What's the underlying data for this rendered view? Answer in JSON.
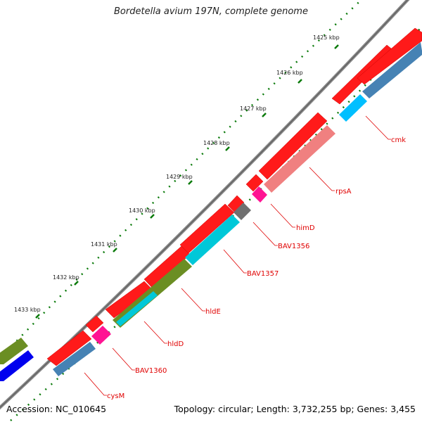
{
  "title": "Bordetella avium 197N, complete genome",
  "footer": {
    "accession": "Accession: NC_010645",
    "summary": "Topology: circular; Length: 3,732,255 bp; Genes: 3,455"
  },
  "kbp_labels": [
    "1425 kbp",
    "1426 kbp",
    "1427 kbp",
    "1428 kbp",
    "1429 kbp",
    "1430 kbp",
    "1431 kbp",
    "1432 kbp",
    "1433 kbp"
  ],
  "gene_labels": [
    "cmk",
    "rpsA",
    "himD",
    "BAV1356",
    "BAV1357",
    "hldE",
    "hldD",
    "BAV1360",
    "cysM"
  ],
  "colors": {
    "backbone": "#7a7a7a",
    "cds": "#ff0000",
    "tick": "#0a7a0a",
    "label": "#e00000",
    "olive": "#6b8e23",
    "steelblue": "#4682b4",
    "cyan": "#00c8d8",
    "pink": "#f08080",
    "magenta": "#ff1493",
    "gray": "#707070",
    "navy": "#0000ee"
  }
}
